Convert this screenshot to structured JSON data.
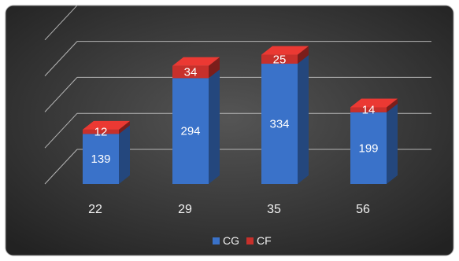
{
  "chart_data": {
    "type": "bar",
    "stacked": true,
    "three_d": true,
    "categories": [
      "22",
      "29",
      "35",
      "56"
    ],
    "series": [
      {
        "name": "CG",
        "values": [
          139,
          294,
          334,
          199
        ],
        "color": "#3a72c9"
      },
      {
        "name": "CF",
        "values": [
          12,
          34,
          25,
          14
        ],
        "color": "#c7302b"
      }
    ],
    "ylim": [
      0,
      400
    ],
    "grid": true,
    "legend_position": "bottom",
    "background": "#333333"
  }
}
